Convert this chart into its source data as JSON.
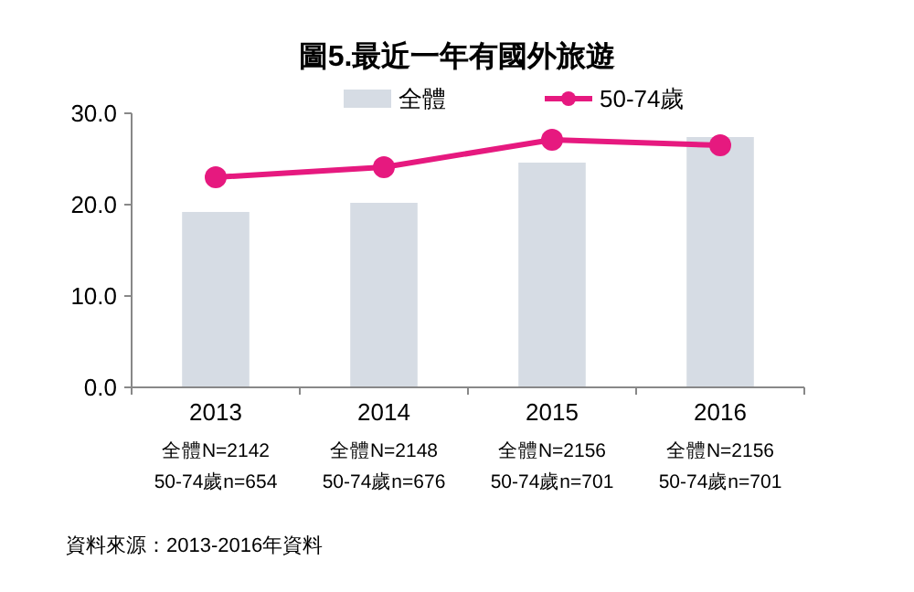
{
  "chart_data": {
    "type": "bar",
    "title": "圖5.最近一年有國外旅遊",
    "categories": [
      "2013\n全體N=2142\n50-74歲n=654",
      "2014\n全體N=2148\n50-74歲n=676",
      "2015\n全體N=2156\n50-74歲n=701",
      "2016\n全體N=2156\n50-74歲n=701"
    ],
    "series": [
      {
        "name": "全體",
        "color": "#d6dce4",
        "values": [
          19.2,
          20.2,
          24.6,
          27.4
        ]
      },
      {
        "name": "50-74歲",
        "type": "line",
        "color": "#e6197f",
        "values": [
          23.0,
          24.1,
          27.1,
          26.5
        ]
      }
    ],
    "ylim": [
      0,
      30
    ],
    "yticks": [
      {
        "value": 0,
        "label": "0.0"
      },
      {
        "value": 10,
        "label": "10.0"
      },
      {
        "value": 20,
        "label": "20.0"
      },
      {
        "value": 30,
        "label": "30.0"
      }
    ],
    "grid": false,
    "legend": "top",
    "marker": "circle",
    "annotations": [
      "資料來源：2013-2016年資料"
    ]
  }
}
